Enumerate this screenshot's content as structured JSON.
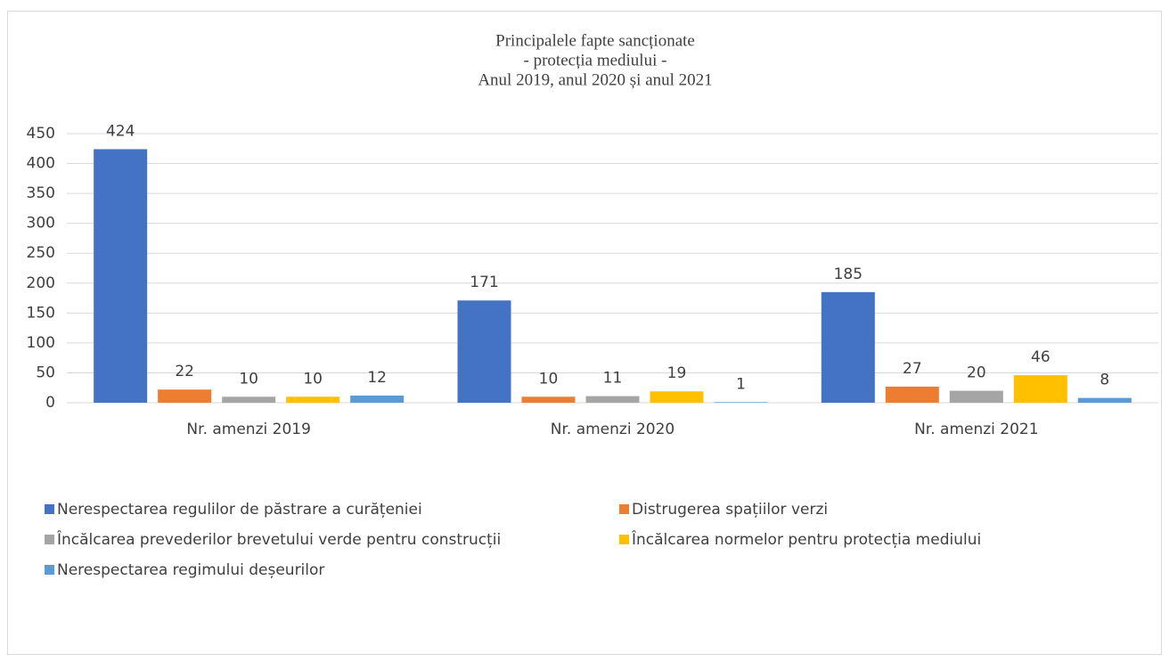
{
  "chart_data": {
    "type": "bar",
    "title": [
      "Principalele fapte sancționate",
      "- protecția mediului -",
      "Anul 2019, anul 2020 și anul 2021"
    ],
    "categories": [
      "Nr. amenzi 2019",
      "Nr. amenzi 2020",
      "Nr. amenzi 2021"
    ],
    "series": [
      {
        "name": "Nerespectarea regulilor de păstrare a curățeniei",
        "color": "#4472c4",
        "values": [
          424,
          171,
          185
        ]
      },
      {
        "name": "Distrugerea spațiilor verzi",
        "color": "#ed7d31",
        "values": [
          22,
          10,
          27
        ]
      },
      {
        "name": "Încălcarea prevederilor brevetului verde pentru construcții",
        "color": "#a5a5a5",
        "values": [
          10,
          11,
          20
        ]
      },
      {
        "name": "Încălcarea normelor pentru protecția mediului",
        "color": "#ffc000",
        "values": [
          10,
          19,
          46
        ]
      },
      {
        "name": "Nerespectarea regimului deșeurilor",
        "color": "#5b9bd5",
        "values": [
          12,
          1,
          8
        ]
      }
    ],
    "ylim": [
      0,
      450
    ],
    "yticks": [
      0,
      50,
      100,
      150,
      200,
      250,
      300,
      350,
      400,
      450
    ],
    "grid": true,
    "legend": "bottom"
  }
}
